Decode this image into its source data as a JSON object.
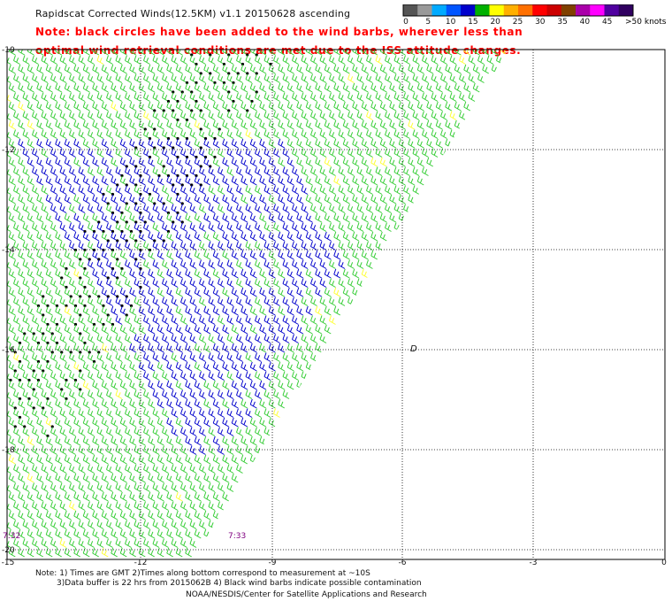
{
  "header": {
    "title": "Rapidscat Corrected Winds(12.5KM) v1.1 20150628 ascending",
    "note_line1": "Note: black circles have been added to the wind barbs, wherever less than",
    "note_line2": "optimal wind retrieval conditions are met due to the ISS attitude changes."
  },
  "legend": {
    "unit": ">50 knots",
    "ticks": [
      "0",
      "5",
      "10",
      "15",
      "20",
      "25",
      "30",
      "35",
      "40",
      "45"
    ],
    "colors": [
      "#555555",
      "#999999",
      "#00aaff",
      "#0055ff",
      "#0000cc",
      "#00b000",
      "#ffff00",
      "#ffb000",
      "#ff7000",
      "#ff0000",
      "#cc0000",
      "#804000",
      "#aa00aa",
      "#ff00ff",
      "#5000a0",
      "#300060"
    ]
  },
  "axes": {
    "y_labels": [
      "-10",
      "-12",
      "-14",
      "-16",
      "-18",
      "-20"
    ],
    "x_labels": [
      "-15",
      "-12",
      "-9",
      "-6",
      "-3",
      "0"
    ]
  },
  "times": {
    "left": "7:32",
    "middle": "7:33"
  },
  "marker": "D",
  "footer": {
    "line1": "Note: 1) Times are GMT 2)Times along bottom correspond to measurement at ~10S",
    "line2": "3)Data buffer is 22 hrs from 2015062B 4) Black wind barbs indicate possible contamination",
    "line3": "NOAA/NESDIS/Center for Satellite Applications and Research"
  },
  "colors": {
    "barb_green": "#33cc33",
    "barb_blue": "#0000cc",
    "barb_yellow": "#ffff33",
    "contamination": "#000000",
    "grid": "#000000"
  }
}
